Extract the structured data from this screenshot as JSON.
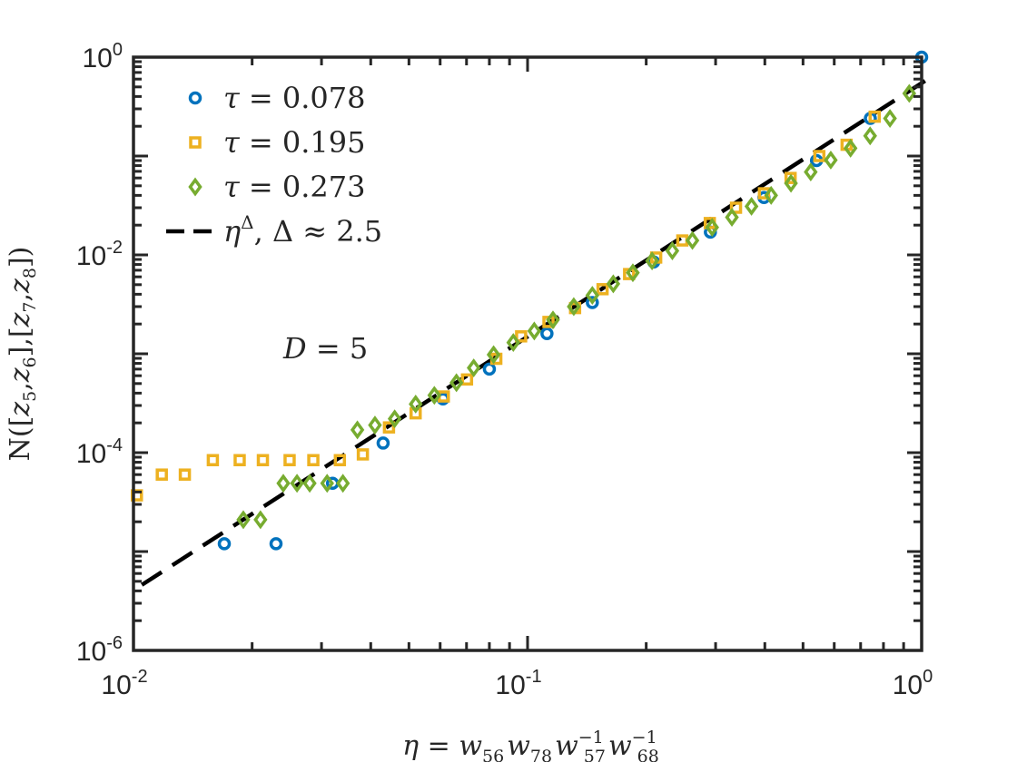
{
  "chart_data": {
    "type": "scatter",
    "x_scale": "log",
    "y_scale": "log",
    "xlim": [
      0.01,
      1
    ],
    "ylim": [
      1e-06,
      1
    ],
    "xticks": [
      {
        "value": 0.01,
        "base": "10",
        "exp": "-2"
      },
      {
        "value": 0.1,
        "base": "10",
        "exp": "-1"
      },
      {
        "value": 1,
        "base": "10",
        "exp": "0"
      }
    ],
    "yticks": [
      {
        "value": 1e-06,
        "base": "10",
        "exp": "-6"
      },
      {
        "value": 0.0001,
        "base": "10",
        "exp": "-4"
      },
      {
        "value": 0.01,
        "base": "10",
        "exp": "-2"
      },
      {
        "value": 1,
        "base": "10",
        "exp": "0"
      }
    ],
    "xlabel": {
      "lhs": "η = ",
      "terms": [
        {
          "base": "w",
          "sub": "56",
          "sup": ""
        },
        {
          "base": "w",
          "sub": "78",
          "sup": ""
        },
        {
          "base": "w",
          "sub": "57",
          "sup": "−1"
        },
        {
          "base": "w",
          "sub": "68",
          "sup": "−1"
        }
      ]
    },
    "ylabel": {
      "prefix": "N([",
      "mid": "],[",
      "suffix": "])",
      "vars": [
        {
          "base": "z",
          "sub": "5"
        },
        {
          "base": "z",
          "sub": "6"
        },
        {
          "base": "z",
          "sub": "7"
        },
        {
          "base": "z",
          "sub": "8"
        }
      ]
    },
    "annotation": {
      "text": "D = 5",
      "x": 0.024,
      "y": 0.0009
    },
    "legend_position": "top-left",
    "series": [
      {
        "name": "τ = 0.078",
        "legend_label": {
          "sym": "τ",
          "rest": " = 0.078"
        },
        "marker": "circle",
        "color": "#0072BD",
        "x": [
          0.017,
          0.023,
          0.032,
          0.043,
          0.061,
          0.08,
          0.112,
          0.146,
          0.209,
          0.291,
          0.398,
          0.541,
          0.741,
          1.0
        ],
        "y": [
          1.2e-05,
          1.2e-05,
          4.9e-05,
          0.000125,
          0.00035,
          0.0007,
          0.0016,
          0.0033,
          0.0085,
          0.017,
          0.038,
          0.09,
          0.24,
          1.0
        ]
      },
      {
        "name": "τ = 0.195",
        "legend_label": {
          "sym": "τ",
          "rest": " = 0.195"
        },
        "marker": "square",
        "color": "#EDB120",
        "x": [
          0.0102,
          0.0118,
          0.0135,
          0.0159,
          0.0186,
          0.0213,
          0.0249,
          0.0286,
          0.0334,
          0.0382,
          0.0445,
          0.052,
          0.0613,
          0.0702,
          0.0833,
          0.0963,
          0.113,
          0.132,
          0.155,
          0.181,
          0.212,
          0.247,
          0.29,
          0.338,
          0.398,
          0.465,
          0.55,
          0.645,
          0.76
        ],
        "y": [
          3.7e-05,
          6e-05,
          6e-05,
          8.4e-05,
          8.4e-05,
          8.4e-05,
          8.4e-05,
          8.4e-05,
          8.4e-05,
          9.6e-05,
          0.00018,
          0.00025,
          0.00037,
          0.00055,
          0.00089,
          0.0015,
          0.0021,
          0.0029,
          0.0045,
          0.0064,
          0.0094,
          0.014,
          0.021,
          0.03,
          0.042,
          0.06,
          0.1,
          0.13,
          0.25
        ]
      },
      {
        "name": "τ = 0.273",
        "legend_label": {
          "sym": "τ",
          "rest": " = 0.273"
        },
        "marker": "diamond",
        "color": "#77AC30",
        "x": [
          0.019,
          0.021,
          0.024,
          0.026,
          0.028,
          0.031,
          0.034,
          0.037,
          0.041,
          0.046,
          0.052,
          0.058,
          0.066,
          0.073,
          0.082,
          0.092,
          0.104,
          0.116,
          0.131,
          0.146,
          0.165,
          0.185,
          0.207,
          0.233,
          0.262,
          0.294,
          0.33,
          0.37,
          0.415,
          0.466,
          0.523,
          0.588,
          0.66,
          0.74,
          0.831,
          0.93
        ],
        "y": [
          2.1e-05,
          2.1e-05,
          4.9e-05,
          4.9e-05,
          4.9e-05,
          4.9e-05,
          4.9e-05,
          0.00017,
          0.00019,
          0.00022,
          0.00031,
          0.00038,
          0.00051,
          0.00072,
          0.00098,
          0.0013,
          0.0017,
          0.0022,
          0.003,
          0.0039,
          0.0051,
          0.0066,
          0.0087,
          0.011,
          0.014,
          0.019,
          0.024,
          0.031,
          0.04,
          0.053,
          0.069,
          0.091,
          0.12,
          0.16,
          0.24,
          0.43
        ]
      },
      {
        "name": "η^Δ, Δ ≈ 2.5",
        "legend_label": {
          "sym": "η",
          "sup": "Δ",
          "rest": ",  Δ ≈ 2.5"
        },
        "type": "line",
        "style": "dashed",
        "color": "#000000",
        "exponent": 2.5,
        "coefficient": 0.42,
        "x": [
          0.0105,
          1.03
        ],
        "y": [
          4.6e-06,
          0.59
        ]
      }
    ]
  }
}
